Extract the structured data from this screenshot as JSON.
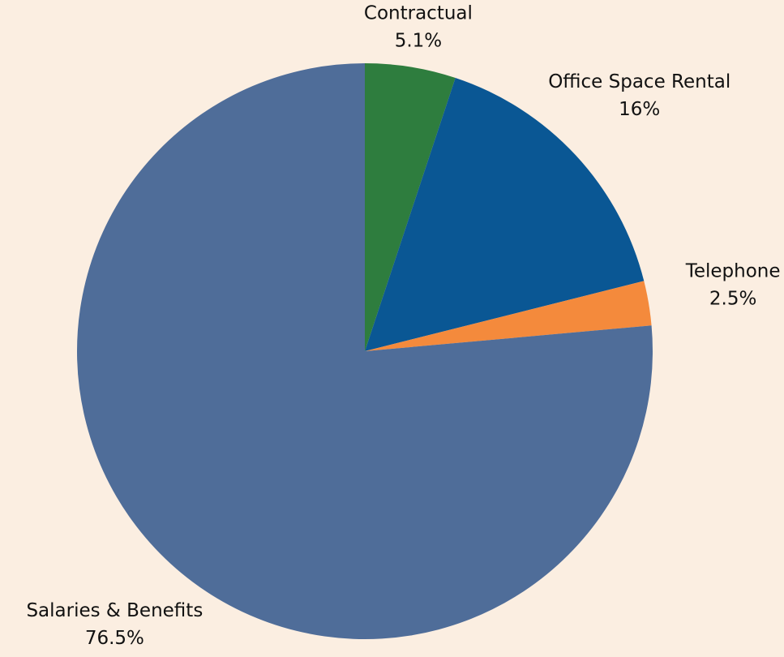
{
  "chart_data": {
    "type": "pie",
    "categories": [
      "Contractual",
      "Office Space Rental",
      "Telephone",
      "Salaries & Benefits"
    ],
    "values": [
      5.1,
      16,
      2.5,
      76.5
    ],
    "value_labels": [
      "5.1%",
      "16%",
      "2.5%",
      "76.5%"
    ],
    "colors": [
      "#2e7d3e",
      "#0a5794",
      "#f48a3c",
      "#4f6d99"
    ]
  }
}
